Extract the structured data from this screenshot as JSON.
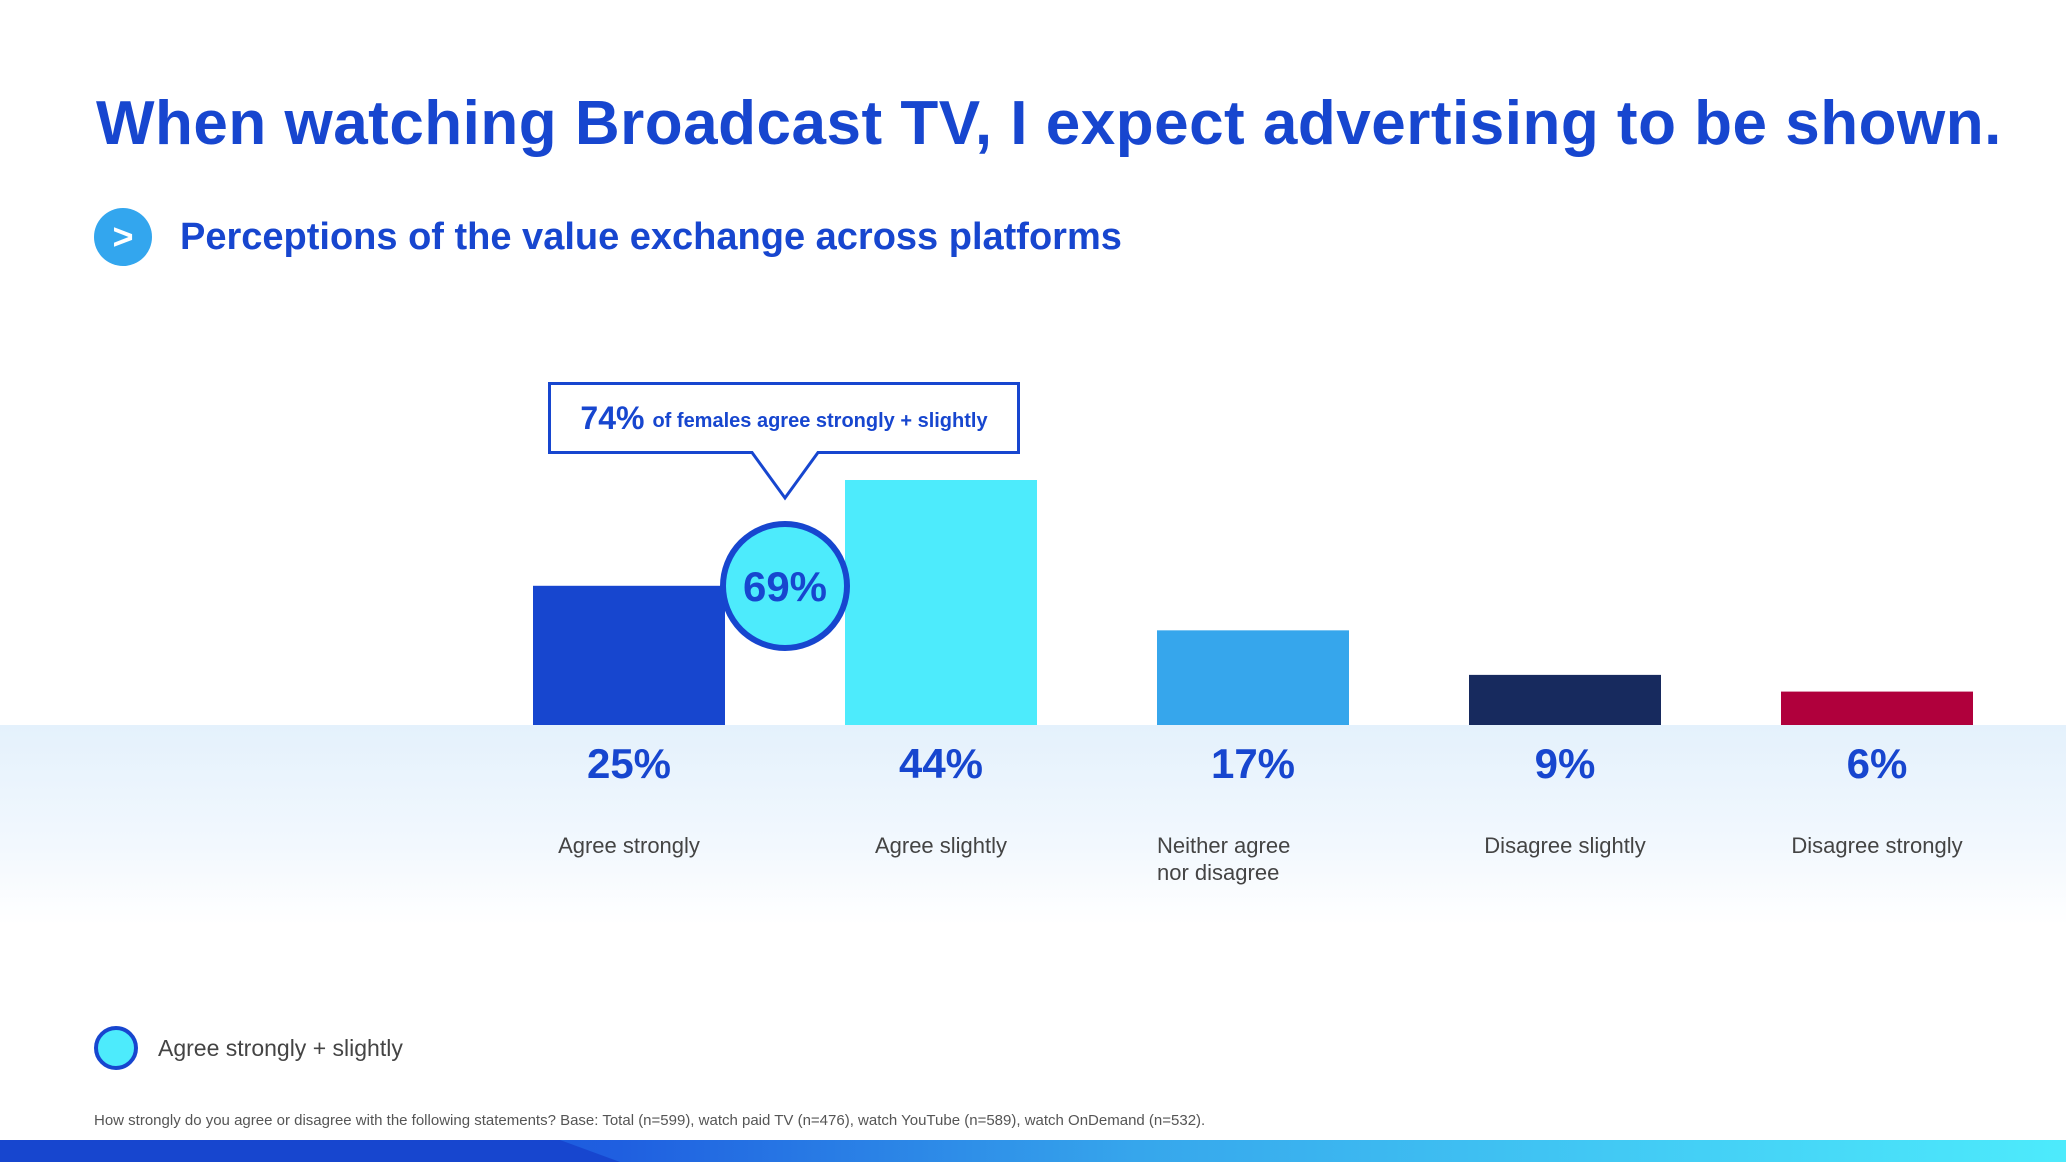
{
  "header": {
    "title": "When watching Broadcast TV, I expect advertising to be shown.",
    "subtitle_icon": "chevron-right-icon",
    "subtitle_icon_glyph": ">",
    "subtitle": "Perceptions of the value exchange across platforms"
  },
  "callout": {
    "pct": "74%",
    "text": "of females agree strongly + slightly"
  },
  "legend": {
    "label": "Agree strongly + slightly"
  },
  "footnote": "How strongly do you agree or disagree with the following statements? Base: Total (n=599), watch paid TV (n=476), watch YouTube (n=589), watch OnDemand (n=532).",
  "colors": {
    "brand_blue": "#1746CF",
    "light_cyan": "#4DEBFC",
    "sky_blue": "#36A6EC",
    "navy": "#172A5E",
    "crimson": "#B0003C",
    "circle_fill": "#4DEBFC"
  },
  "chart_data": {
    "type": "bar",
    "title": "Perceptions of the value exchange across platforms",
    "categories": [
      [
        "Agree strongly"
      ],
      [
        "Agree slightly"
      ],
      [
        "Neither agree",
        "nor disagree"
      ],
      [
        "Disagree slightly"
      ],
      [
        "Disagree strongly"
      ]
    ],
    "values": [
      25,
      44,
      17,
      9,
      6
    ],
    "value_labels": [
      "25%",
      "44%",
      "17%",
      "9%",
      "6%"
    ],
    "bar_colors": [
      "#1746CF",
      "#4DEBFC",
      "#36A6EC",
      "#172A5E",
      "#B0003C"
    ],
    "combined_label": "69%",
    "combined_value": 69,
    "unit": "%",
    "ylim": [
      0,
      44
    ],
    "grid": false,
    "xlabel": "",
    "ylabel": ""
  }
}
